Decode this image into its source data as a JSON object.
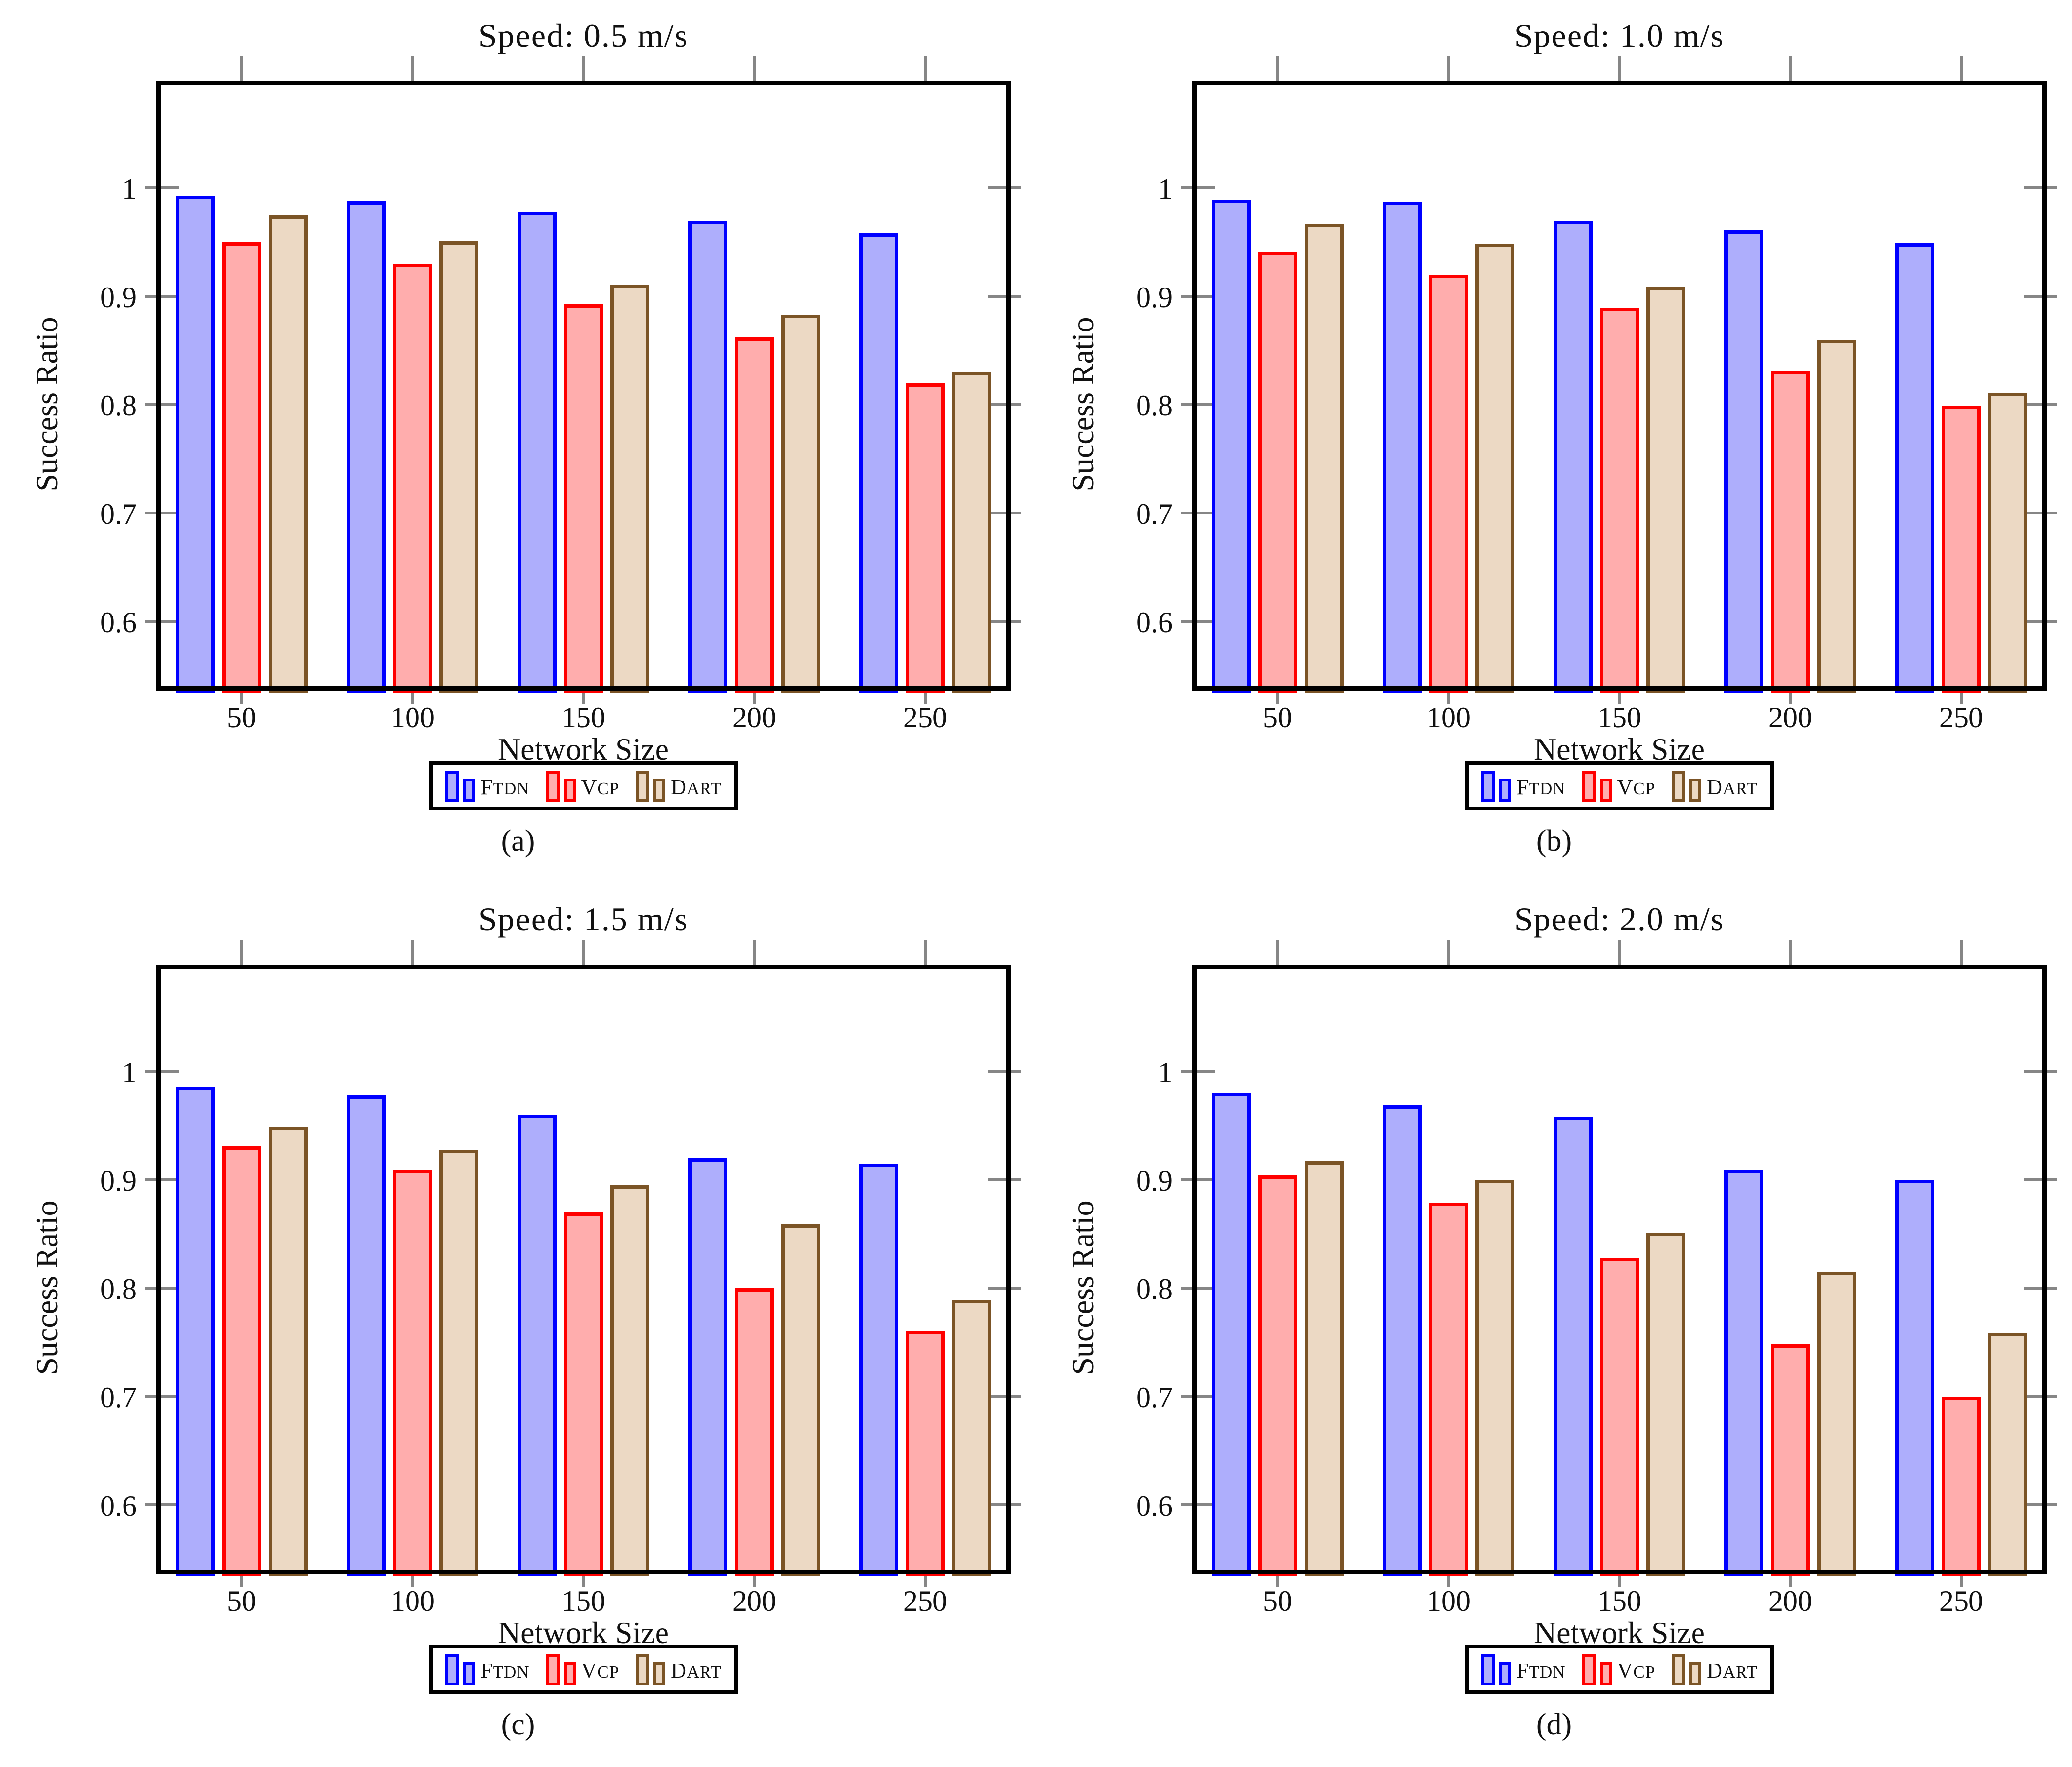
{
  "figure": {
    "background": "#ffffff",
    "frame_color": "#000000",
    "tick_color": "#868686",
    "text_color": "#111111"
  },
  "chart_data": [
    {
      "type": "bar",
      "title": "Speed: 0.5 m/s",
      "xlabel": "Network Size",
      "ylabel": "Success Ratio",
      "caption": "(a)",
      "categories": [
        "50",
        "100",
        "150",
        "200",
        "250"
      ],
      "yticks": [
        {
          "value": 1.0,
          "label": "1"
        },
        {
          "value": 0.9,
          "label": "0.9"
        },
        {
          "value": 0.8,
          "label": "0.8"
        },
        {
          "value": 0.7,
          "label": "0.7"
        },
        {
          "value": 0.6,
          "label": "0.6"
        }
      ],
      "ylim": [
        0.54,
        1.1
      ],
      "grid": false,
      "legend_position": "below",
      "series": [
        {
          "name": "FTDN",
          "fill": "#aeaefc",
          "border": "#0000ff",
          "values": [
            0.993,
            0.988,
            0.978,
            0.97,
            0.958
          ]
        },
        {
          "name": "VCP",
          "fill": "#ffadad",
          "border": "#ff0000",
          "values": [
            0.95,
            0.93,
            0.893,
            0.862,
            0.82
          ]
        },
        {
          "name": "DART",
          "fill": "#ecd9c4",
          "border": "#7b5426",
          "values": [
            0.975,
            0.951,
            0.911,
            0.883,
            0.83
          ]
        }
      ]
    },
    {
      "type": "bar",
      "title": "Speed: 1.0 m/s",
      "xlabel": "Network Size",
      "ylabel": "Success Ratio",
      "caption": "(b)",
      "categories": [
        "50",
        "100",
        "150",
        "200",
        "250"
      ],
      "yticks": [
        {
          "value": 1.0,
          "label": "1"
        },
        {
          "value": 0.9,
          "label": "0.9"
        },
        {
          "value": 0.8,
          "label": "0.8"
        },
        {
          "value": 0.7,
          "label": "0.7"
        },
        {
          "value": 0.6,
          "label": "0.6"
        }
      ],
      "ylim": [
        0.54,
        1.1
      ],
      "grid": false,
      "legend_position": "below",
      "series": [
        {
          "name": "FTDN",
          "fill": "#aeaefc",
          "border": "#0000ff",
          "values": [
            0.989,
            0.987,
            0.97,
            0.961,
            0.949
          ]
        },
        {
          "name": "VCP",
          "fill": "#ffadad",
          "border": "#ff0000",
          "values": [
            0.941,
            0.92,
            0.889,
            0.831,
            0.799
          ]
        },
        {
          "name": "DART",
          "fill": "#ecd9c4",
          "border": "#7b5426",
          "values": [
            0.967,
            0.948,
            0.909,
            0.86,
            0.811
          ]
        }
      ]
    },
    {
      "type": "bar",
      "title": "Speed: 1.5 m/s",
      "xlabel": "Network Size",
      "ylabel": "Success Ratio",
      "caption": "(c)",
      "categories": [
        "50",
        "100",
        "150",
        "200",
        "250"
      ],
      "yticks": [
        {
          "value": 1.0,
          "label": "1"
        },
        {
          "value": 0.9,
          "label": "0.9"
        },
        {
          "value": 0.8,
          "label": "0.8"
        },
        {
          "value": 0.7,
          "label": "0.7"
        },
        {
          "value": 0.6,
          "label": "0.6"
        }
      ],
      "ylim": [
        0.54,
        1.1
      ],
      "grid": false,
      "legend_position": "below",
      "series": [
        {
          "name": "FTDN",
          "fill": "#aeaefc",
          "border": "#0000ff",
          "values": [
            0.986,
            0.978,
            0.96,
            0.92,
            0.915
          ]
        },
        {
          "name": "VCP",
          "fill": "#ffadad",
          "border": "#ff0000",
          "values": [
            0.931,
            0.909,
            0.87,
            0.8,
            0.761
          ]
        },
        {
          "name": "DART",
          "fill": "#ecd9c4",
          "border": "#7b5426",
          "values": [
            0.949,
            0.928,
            0.895,
            0.859,
            0.789
          ]
        }
      ]
    },
    {
      "type": "bar",
      "title": "Speed: 2.0 m/s",
      "xlabel": "Network Size",
      "ylabel": "Success Ratio",
      "caption": "(d)",
      "categories": [
        "50",
        "100",
        "150",
        "200",
        "250"
      ],
      "yticks": [
        {
          "value": 1.0,
          "label": "1"
        },
        {
          "value": 0.9,
          "label": "0.9"
        },
        {
          "value": 0.8,
          "label": "0.8"
        },
        {
          "value": 0.7,
          "label": "0.7"
        },
        {
          "value": 0.6,
          "label": "0.6"
        }
      ],
      "ylim": [
        0.54,
        1.1
      ],
      "grid": false,
      "legend_position": "below",
      "series": [
        {
          "name": "FTDN",
          "fill": "#aeaefc",
          "border": "#0000ff",
          "values": [
            0.98,
            0.969,
            0.958,
            0.909,
            0.9
          ]
        },
        {
          "name": "VCP",
          "fill": "#ffadad",
          "border": "#ff0000",
          "values": [
            0.904,
            0.879,
            0.828,
            0.748,
            0.7
          ]
        },
        {
          "name": "DART",
          "fill": "#ecd9c4",
          "border": "#7b5426",
          "values": [
            0.917,
            0.9,
            0.851,
            0.815,
            0.759
          ]
        }
      ]
    }
  ]
}
